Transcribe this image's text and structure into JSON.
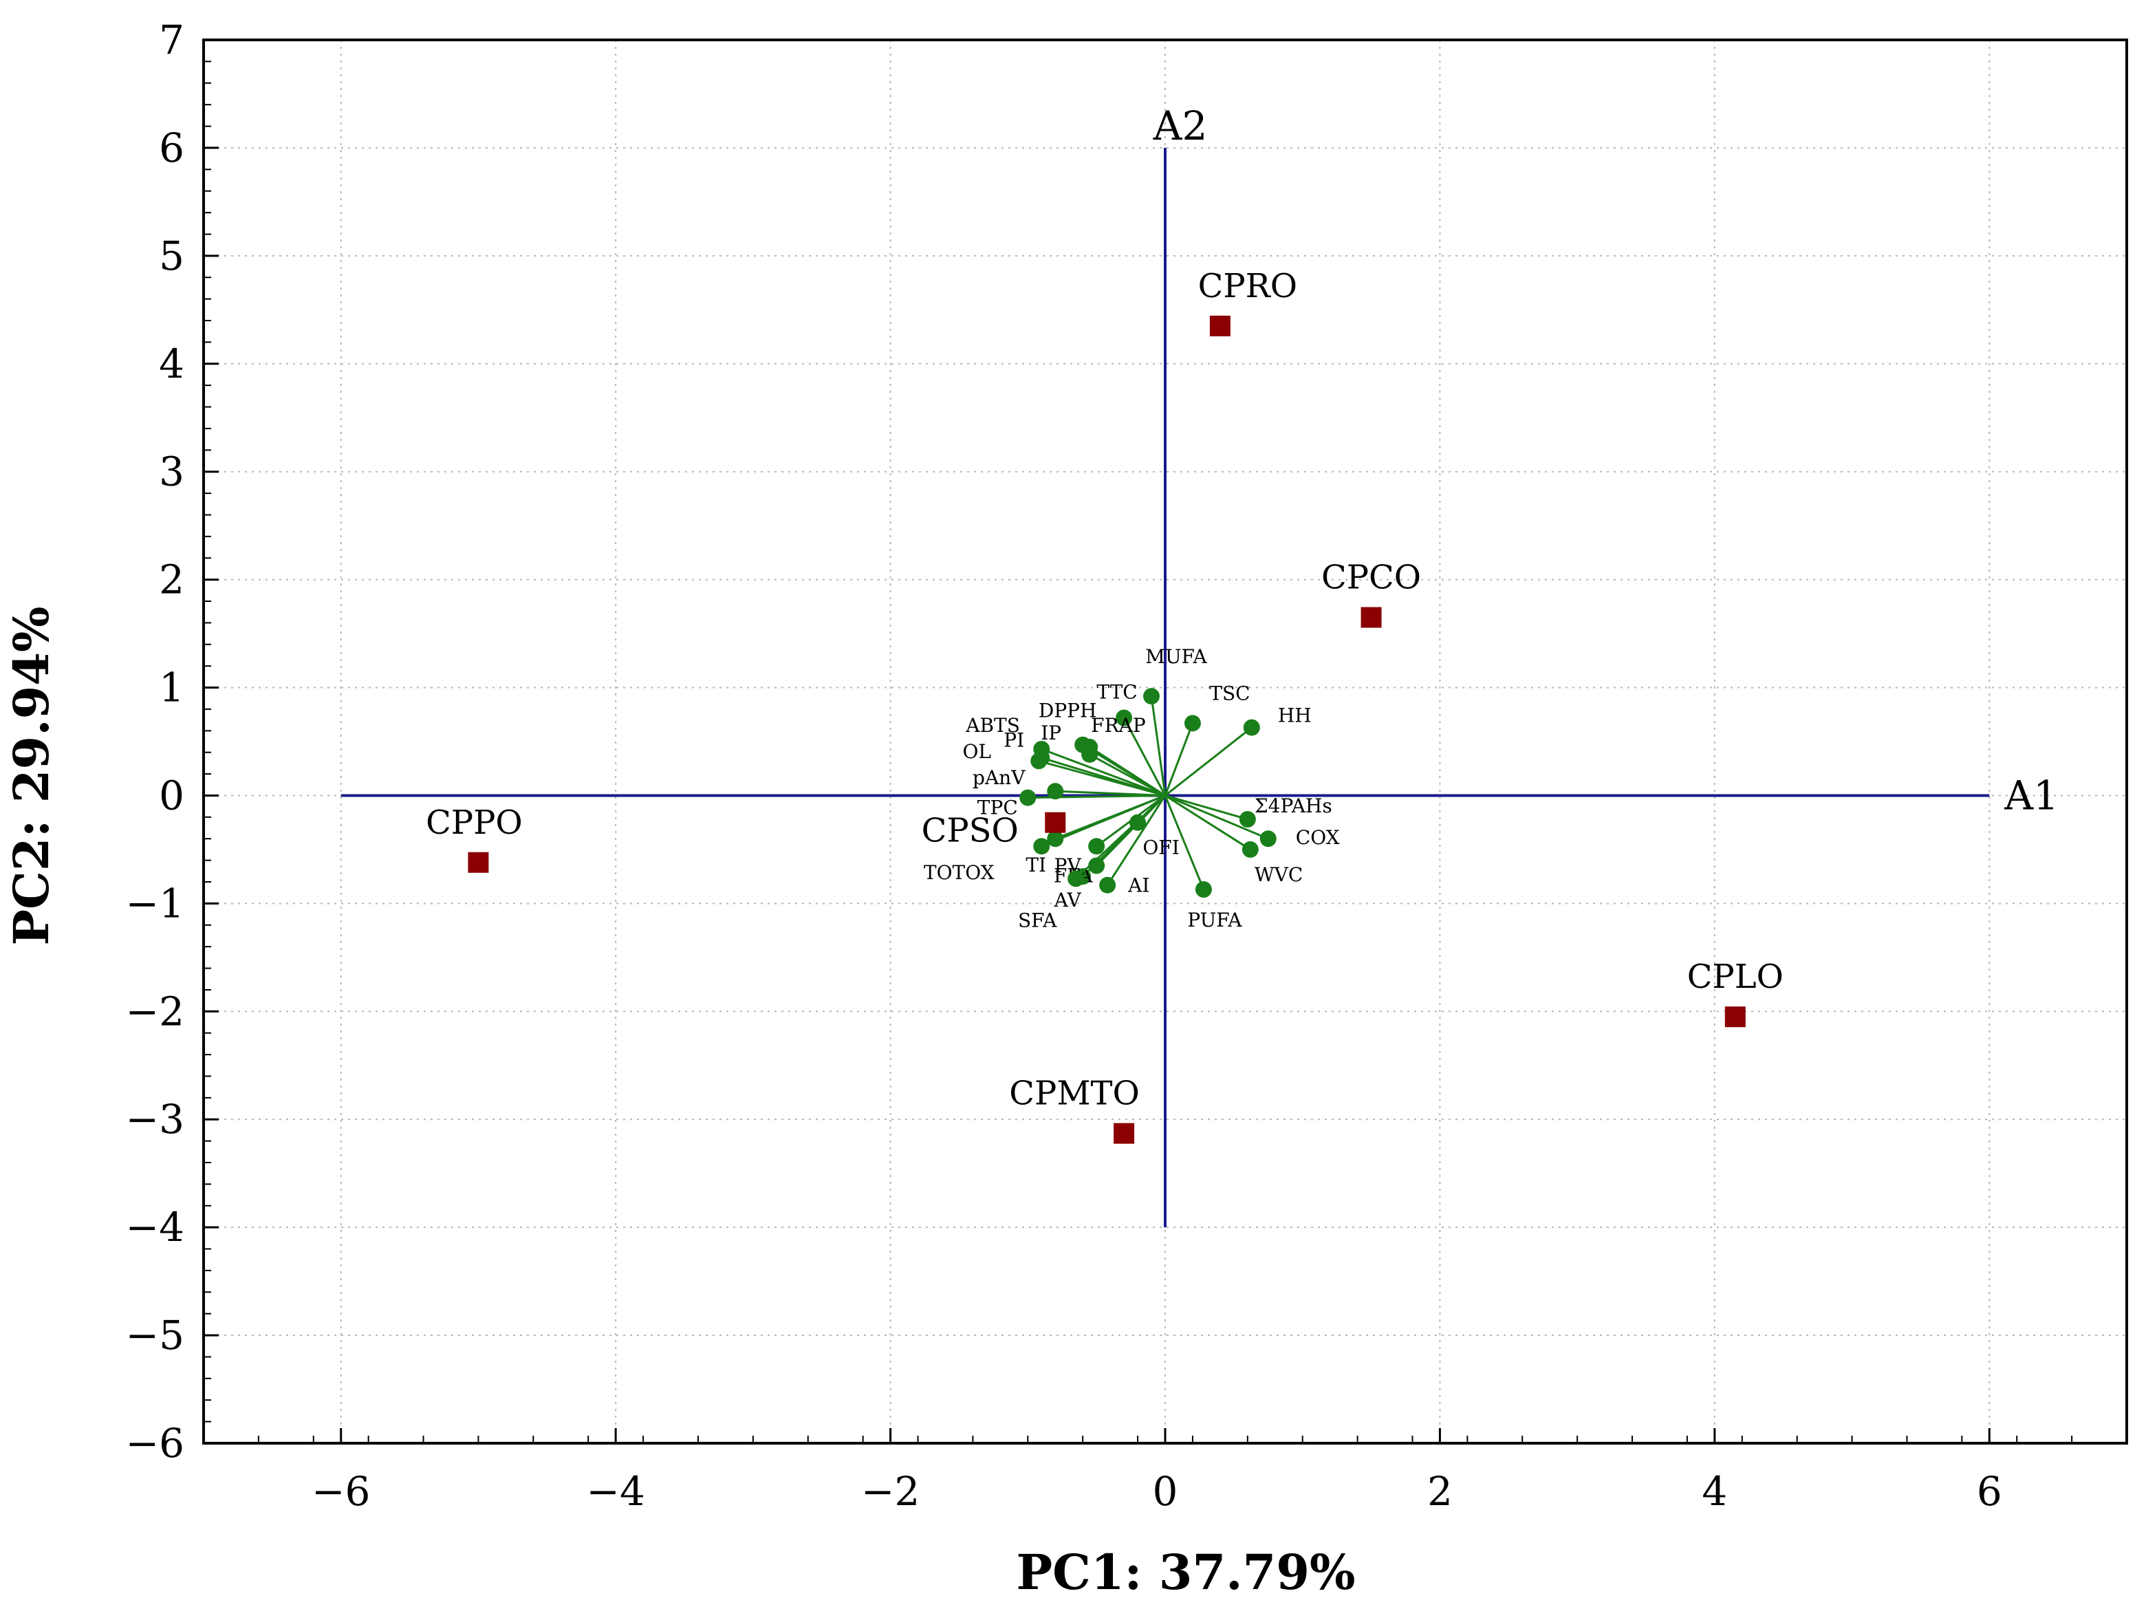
{
  "chart_data": {
    "type": "scatter",
    "subtype": "pca-biplot",
    "title": "",
    "xlabel": "PC1: 37.79%",
    "ylabel": "PC2: 29.94%",
    "xlim": [
      -7,
      7
    ],
    "ylim": [
      -6,
      7
    ],
    "xticks": [
      -6,
      -4,
      -2,
      0,
      2,
      4,
      6
    ],
    "yticks": [
      -6,
      -5,
      -4,
      -3,
      -2,
      -1,
      0,
      1,
      2,
      3,
      4,
      5,
      6,
      7
    ],
    "tick_labels_x": [
      "−6",
      "−4",
      "−2",
      "0",
      "2",
      "4",
      "6"
    ],
    "tick_labels_y": [
      "−6",
      "−5",
      "−4",
      "−3",
      "−2",
      "−1",
      "0",
      "1",
      "2",
      "3",
      "4",
      "5",
      "6",
      "7"
    ],
    "grid": true,
    "reference_axes": [
      {
        "name": "A1",
        "from": [
          -6,
          0
        ],
        "to": [
          6,
          0
        ]
      },
      {
        "name": "A2",
        "from": [
          0,
          -4
        ],
        "to": [
          0,
          6
        ]
      }
    ],
    "colors": {
      "observation": "#8B0000",
      "variable": "#1a7f1a",
      "reference": "#1a1a8c"
    },
    "observations": [
      {
        "name": "CPRO",
        "x": 0.4,
        "y": 4.35
      },
      {
        "name": "CPCO",
        "x": 1.5,
        "y": 1.65
      },
      {
        "name": "CPPO",
        "x": -5.0,
        "y": -0.62
      },
      {
        "name": "CPSO",
        "x": -0.8,
        "y": -0.25
      },
      {
        "name": "CPLO",
        "x": 4.15,
        "y": -2.05
      },
      {
        "name": "CPMTO",
        "x": -0.3,
        "y": -3.13
      }
    ],
    "variables": [
      {
        "name": "MUFA",
        "x": -0.1,
        "y": 0.92
      },
      {
        "name": "TTC",
        "x": -0.3,
        "y": 0.72
      },
      {
        "name": "ABTS",
        "x": -0.9,
        "y": 0.43
      },
      {
        "name": "DPPH",
        "x": -0.6,
        "y": 0.47
      },
      {
        "name": "PI",
        "x": -0.9,
        "y": 0.35
      },
      {
        "name": "IP",
        "x": -0.55,
        "y": 0.38
      },
      {
        "name": "FRAP",
        "x": -0.55,
        "y": 0.45
      },
      {
        "name": "OL",
        "x": -0.92,
        "y": 0.32
      },
      {
        "name": "pAnV",
        "x": -0.8,
        "y": 0.04
      },
      {
        "name": "TPC",
        "x": -1.0,
        "y": -0.02
      },
      {
        "name": "TSC",
        "x": 0.2,
        "y": 0.67
      },
      {
        "name": "HH",
        "x": 0.63,
        "y": 0.63
      },
      {
        "name": "Σ4PAHs",
        "x": 0.6,
        "y": -0.22
      },
      {
        "name": "COX",
        "x": 0.75,
        "y": -0.4
      },
      {
        "name": "WVC",
        "x": 0.62,
        "y": -0.5
      },
      {
        "name": "PUFA",
        "x": 0.28,
        "y": -0.87
      },
      {
        "name": "OFI",
        "x": -0.2,
        "y": -0.25
      },
      {
        "name": "AI",
        "x": -0.42,
        "y": -0.83
      },
      {
        "name": "AV",
        "x": -0.6,
        "y": -0.75
      },
      {
        "name": "FFA",
        "x": -0.5,
        "y": -0.65
      },
      {
        "name": "PV",
        "x": -0.5,
        "y": -0.47
      },
      {
        "name": "TI",
        "x": -0.8,
        "y": -0.4
      },
      {
        "name": "TOTOX",
        "x": -0.9,
        "y": -0.47
      },
      {
        "name": "SFA",
        "x": -0.65,
        "y": -0.77
      }
    ]
  }
}
